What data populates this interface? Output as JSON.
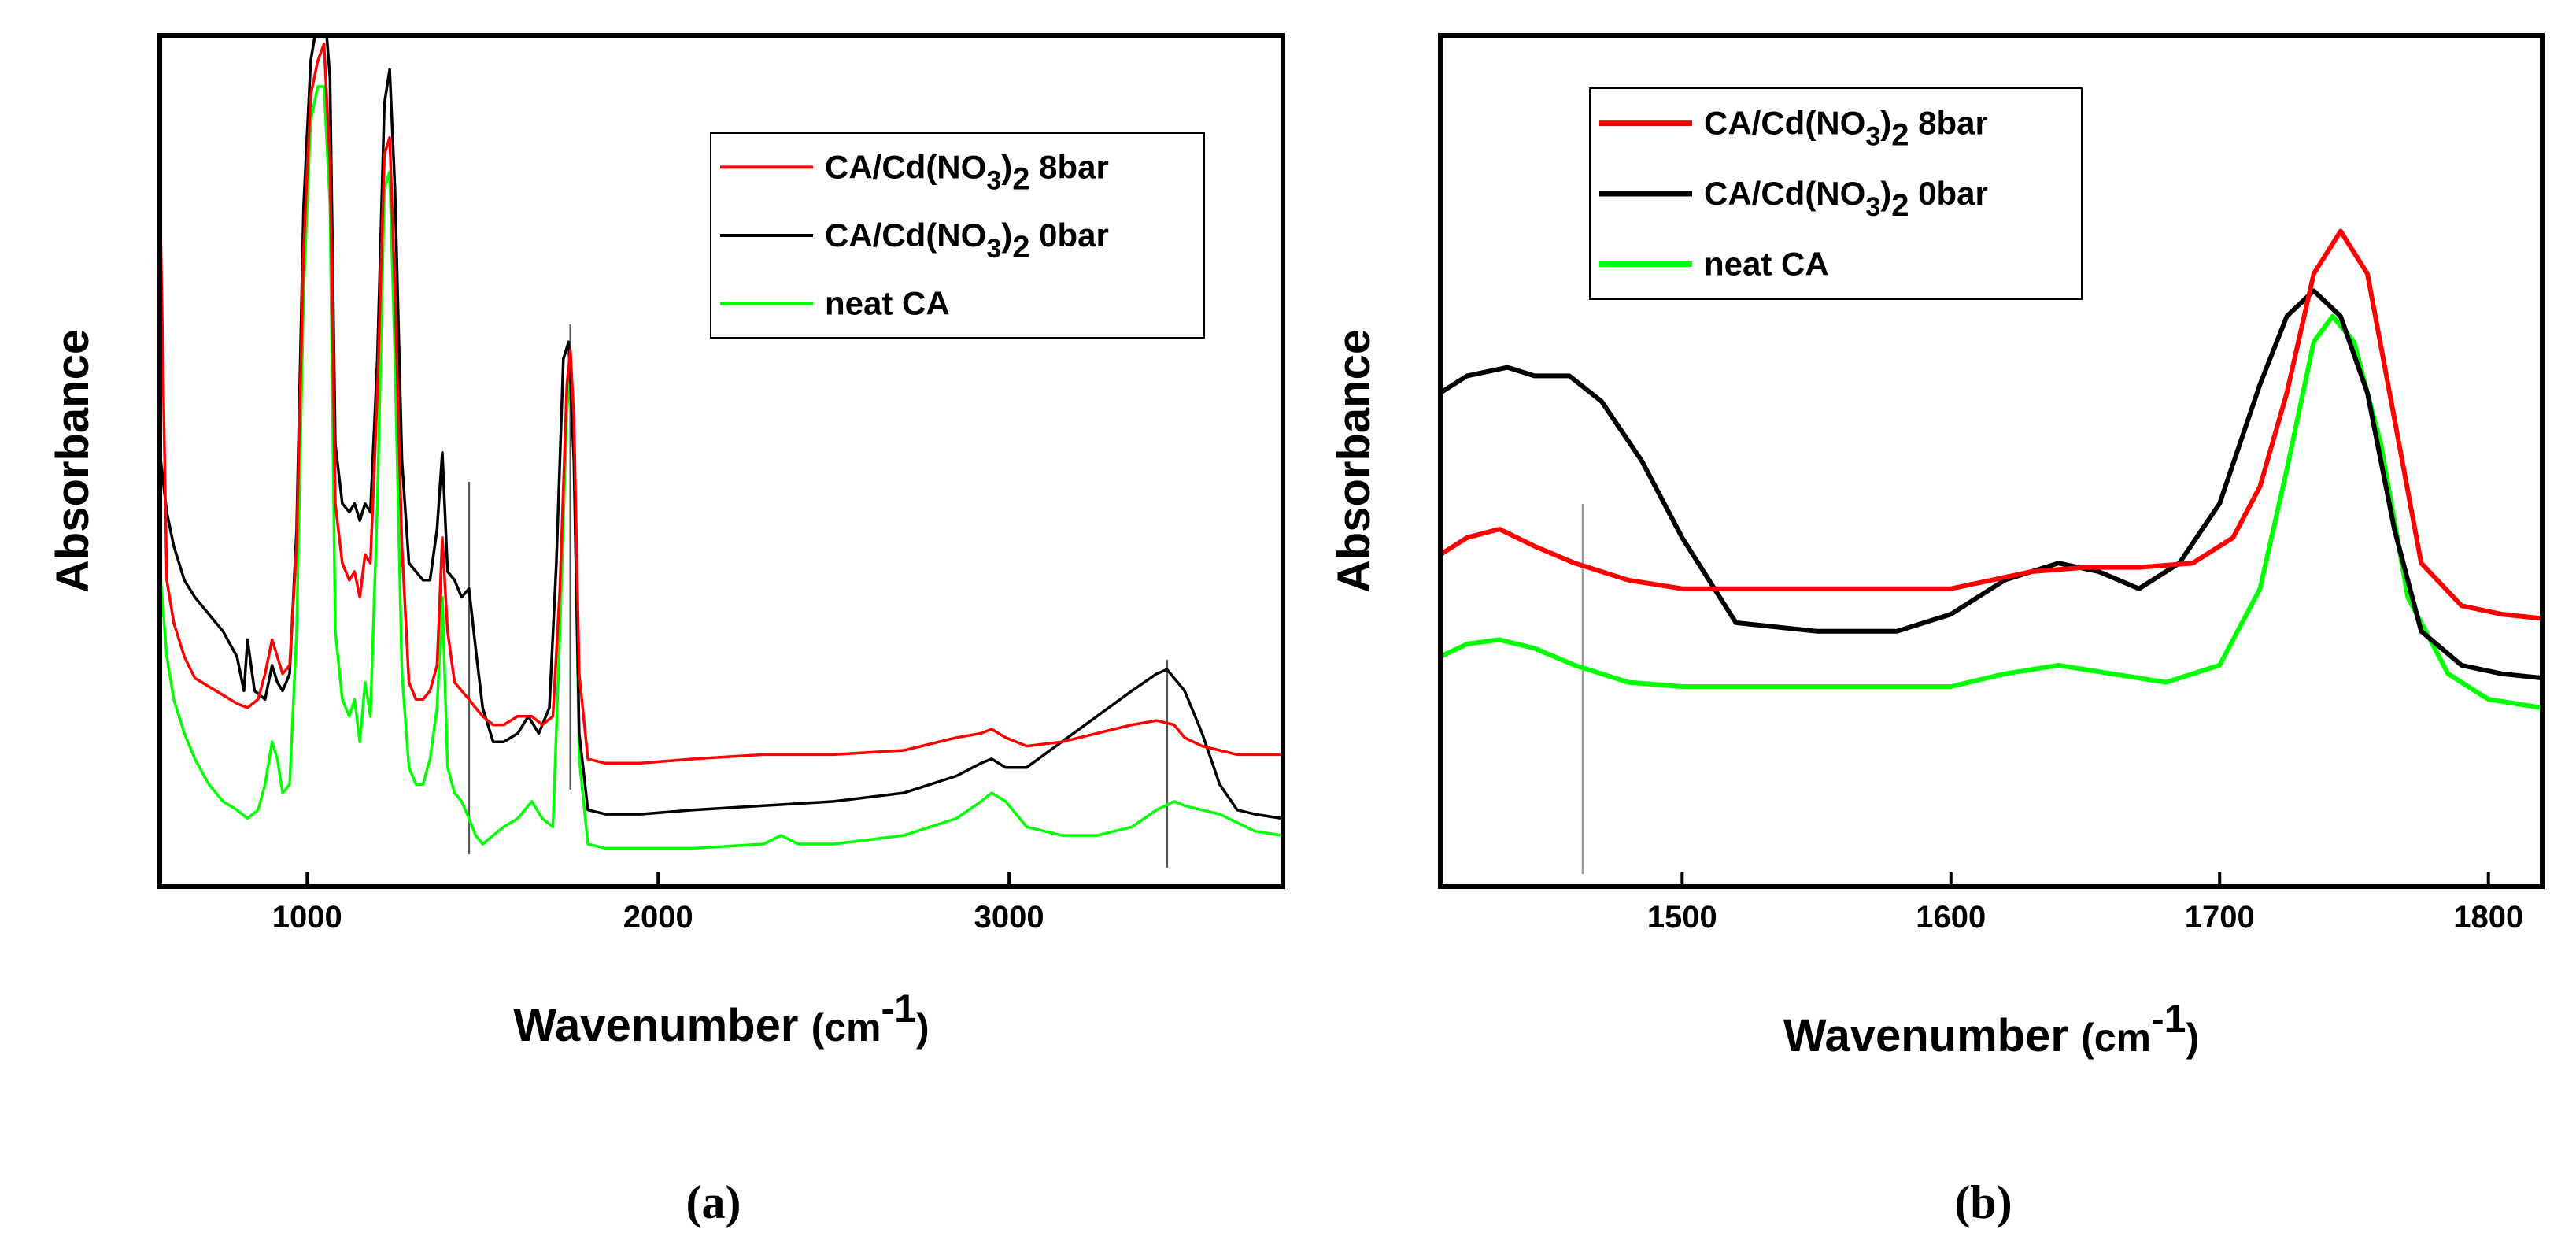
{
  "chart_data": [
    {
      "type": "line",
      "panel_label": "(a)",
      "xlabel": "Wavenumber",
      "xlabel_unit": "(cm",
      "xlabel_unit_sup": "-1",
      "xlabel_unit_close": ")",
      "ylabel": "Absorbance",
      "xlim": [
        580,
        3780
      ],
      "ylim": [
        0,
        1.0
      ],
      "xticks": [
        1000,
        2000,
        3000
      ],
      "xtick_labels": [
        "1000",
        "2000",
        "3000"
      ],
      "y_ticks_shown": false,
      "legend_position": "top-right",
      "reference_lines_x": [
        1461,
        1750,
        3450
      ],
      "series": [
        {
          "name": "CA/Cd(NO3)2 8bar",
          "legend_main": "CA/Cd(NO",
          "legend_sub1": "3",
          "legend_mid": ")",
          "legend_sub2": "2",
          "legend_tail": " 8bar",
          "color": "#ff0000",
          "x": [
            583,
            600,
            620,
            650,
            680,
            720,
            760,
            800,
            830,
            860,
            880,
            900,
            915,
            930,
            950,
            970,
            990,
            1010,
            1030,
            1048,
            1065,
            1080,
            1100,
            1120,
            1135,
            1150,
            1165,
            1180,
            1200,
            1220,
            1235,
            1250,
            1270,
            1290,
            1310,
            1330,
            1350,
            1370,
            1385,
            1400,
            1420,
            1440,
            1461,
            1480,
            1500,
            1530,
            1560,
            1600,
            1640,
            1670,
            1700,
            1720,
            1740,
            1750,
            1760,
            1775,
            1800,
            1850,
            1950,
            2100,
            2300,
            2500,
            2700,
            2850,
            2920,
            2950,
            2990,
            3050,
            3150,
            3250,
            3350,
            3420,
            3470,
            3500,
            3550,
            3600,
            3650,
            3700,
            3778
          ],
          "y": [
            0.76,
            0.36,
            0.31,
            0.27,
            0.245,
            0.235,
            0.225,
            0.215,
            0.21,
            0.22,
            0.25,
            0.29,
            0.27,
            0.25,
            0.26,
            0.4,
            0.75,
            0.93,
            0.97,
            0.99,
            0.85,
            0.45,
            0.38,
            0.36,
            0.37,
            0.34,
            0.39,
            0.38,
            0.58,
            0.86,
            0.88,
            0.7,
            0.4,
            0.24,
            0.22,
            0.22,
            0.23,
            0.26,
            0.41,
            0.3,
            0.24,
            0.23,
            0.22,
            0.21,
            0.2,
            0.19,
            0.19,
            0.2,
            0.2,
            0.19,
            0.2,
            0.35,
            0.59,
            0.63,
            0.55,
            0.25,
            0.15,
            0.145,
            0.145,
            0.15,
            0.155,
            0.155,
            0.16,
            0.175,
            0.18,
            0.185,
            0.175,
            0.165,
            0.17,
            0.18,
            0.19,
            0.195,
            0.19,
            0.175,
            0.165,
            0.16,
            0.155,
            0.155,
            0.155
          ]
        },
        {
          "name": "CA/Cd(NO3)2 0bar",
          "legend_main": "CA/Cd(NO",
          "legend_sub1": "3",
          "legend_mid": ")",
          "legend_sub2": "2",
          "legend_tail": " 0bar",
          "color": "#000000",
          "x": [
            583,
            600,
            620,
            650,
            680,
            720,
            760,
            800,
            820,
            830,
            850,
            880,
            900,
            915,
            930,
            950,
            970,
            990,
            1010,
            1030,
            1048,
            1065,
            1080,
            1100,
            1120,
            1135,
            1150,
            1165,
            1180,
            1200,
            1220,
            1235,
            1250,
            1270,
            1290,
            1310,
            1330,
            1350,
            1370,
            1385,
            1400,
            1420,
            1440,
            1461,
            1480,
            1500,
            1530,
            1560,
            1600,
            1630,
            1660,
            1690,
            1710,
            1730,
            1745,
            1760,
            1775,
            1800,
            1850,
            1950,
            2100,
            2300,
            2500,
            2700,
            2850,
            2920,
            2950,
            2990,
            3050,
            3150,
            3250,
            3350,
            3420,
            3450,
            3500,
            3550,
            3600,
            3650,
            3700,
            3778
          ],
          "y": [
            0.5,
            0.44,
            0.4,
            0.36,
            0.34,
            0.32,
            0.3,
            0.27,
            0.23,
            0.29,
            0.23,
            0.22,
            0.26,
            0.24,
            0.23,
            0.25,
            0.42,
            0.8,
            0.97,
            1.02,
            1.04,
            0.95,
            0.52,
            0.45,
            0.44,
            0.45,
            0.43,
            0.45,
            0.44,
            0.62,
            0.92,
            0.96,
            0.82,
            0.5,
            0.38,
            0.37,
            0.36,
            0.36,
            0.42,
            0.51,
            0.37,
            0.36,
            0.34,
            0.35,
            0.28,
            0.21,
            0.17,
            0.17,
            0.18,
            0.2,
            0.18,
            0.21,
            0.38,
            0.62,
            0.64,
            0.5,
            0.18,
            0.09,
            0.085,
            0.085,
            0.09,
            0.095,
            0.1,
            0.11,
            0.13,
            0.145,
            0.15,
            0.14,
            0.14,
            0.17,
            0.2,
            0.23,
            0.25,
            0.255,
            0.23,
            0.18,
            0.12,
            0.09,
            0.085,
            0.08
          ]
        },
        {
          "name": "neat CA",
          "legend_main": "neat CA",
          "legend_sub1": "",
          "legend_mid": "",
          "legend_sub2": "",
          "legend_tail": "",
          "color": "#00ff00",
          "x": [
            583,
            600,
            620,
            650,
            680,
            720,
            760,
            800,
            830,
            860,
            880,
            900,
            915,
            930,
            950,
            970,
            990,
            1010,
            1030,
            1048,
            1065,
            1080,
            1100,
            1120,
            1135,
            1150,
            1165,
            1180,
            1200,
            1220,
            1235,
            1250,
            1270,
            1290,
            1310,
            1330,
            1350,
            1370,
            1385,
            1400,
            1420,
            1440,
            1461,
            1480,
            1500,
            1530,
            1560,
            1600,
            1640,
            1670,
            1700,
            1720,
            1740,
            1750,
            1760,
            1775,
            1800,
            1850,
            1950,
            2100,
            2300,
            2350,
            2400,
            2500,
            2700,
            2850,
            2920,
            2950,
            2990,
            3050,
            3150,
            3250,
            3350,
            3420,
            3470,
            3500,
            3550,
            3600,
            3650,
            3700,
            3778
          ],
          "y": [
            0.36,
            0.27,
            0.22,
            0.18,
            0.15,
            0.12,
            0.1,
            0.09,
            0.08,
            0.09,
            0.12,
            0.17,
            0.15,
            0.11,
            0.12,
            0.3,
            0.7,
            0.9,
            0.94,
            0.94,
            0.8,
            0.3,
            0.22,
            0.2,
            0.22,
            0.17,
            0.24,
            0.2,
            0.45,
            0.82,
            0.84,
            0.62,
            0.25,
            0.14,
            0.12,
            0.12,
            0.15,
            0.21,
            0.34,
            0.14,
            0.11,
            0.1,
            0.08,
            0.06,
            0.05,
            0.06,
            0.07,
            0.08,
            0.1,
            0.08,
            0.07,
            0.3,
            0.56,
            0.6,
            0.52,
            0.15,
            0.05,
            0.045,
            0.045,
            0.045,
            0.05,
            0.06,
            0.05,
            0.05,
            0.06,
            0.08,
            0.1,
            0.11,
            0.1,
            0.07,
            0.06,
            0.06,
            0.07,
            0.09,
            0.1,
            0.095,
            0.09,
            0.085,
            0.075,
            0.065,
            0.06
          ]
        }
      ]
    },
    {
      "type": "line",
      "panel_label": "(b)",
      "xlabel": "Wavenumber",
      "xlabel_unit": "(cm",
      "xlabel_unit_sup": "-1",
      "xlabel_unit_close": ")",
      "ylabel": "Absorbance",
      "xlim": [
        1410,
        1820
      ],
      "ylim": [
        0,
        1.0
      ],
      "xticks": [
        1500,
        1600,
        1700,
        1800
      ],
      "xtick_labels": [
        "1500",
        "1600",
        "1700",
        "1800"
      ],
      "y_ticks_shown": false,
      "legend_position": "top-left",
      "reference_lines_x": [
        1463
      ],
      "series": [
        {
          "name": "CA/Cd(NO3)2 8bar",
          "legend_main": "CA/Cd(NO",
          "legend_sub1": "3",
          "legend_mid": ")",
          "legend_sub2": "2",
          "legend_tail": " 8bar",
          "color": "#ff0000",
          "x": [
            1410,
            1420,
            1432,
            1445,
            1460,
            1480,
            1500,
            1530,
            1560,
            1600,
            1630,
            1650,
            1670,
            1690,
            1705,
            1715,
            1725,
            1735,
            1745,
            1755,
            1765,
            1775,
            1790,
            1805,
            1820
          ],
          "y": [
            0.39,
            0.41,
            0.42,
            0.4,
            0.38,
            0.36,
            0.35,
            0.35,
            0.35,
            0.35,
            0.37,
            0.375,
            0.375,
            0.38,
            0.41,
            0.47,
            0.58,
            0.72,
            0.77,
            0.72,
            0.55,
            0.38,
            0.33,
            0.32,
            0.315
          ]
        },
        {
          "name": "CA/Cd(NO3)2 0bar",
          "legend_main": "CA/Cd(NO",
          "legend_sub1": "3",
          "legend_mid": ")",
          "legend_sub2": "2",
          "legend_tail": " 0bar",
          "color": "#000000",
          "x": [
            1410,
            1420,
            1435,
            1445,
            1458,
            1470,
            1485,
            1500,
            1520,
            1550,
            1580,
            1600,
            1620,
            1640,
            1655,
            1670,
            1685,
            1700,
            1715,
            1725,
            1735,
            1745,
            1755,
            1765,
            1775,
            1790,
            1805,
            1820
          ],
          "y": [
            0.58,
            0.6,
            0.61,
            0.6,
            0.6,
            0.57,
            0.5,
            0.41,
            0.31,
            0.3,
            0.3,
            0.32,
            0.36,
            0.38,
            0.37,
            0.35,
            0.38,
            0.45,
            0.59,
            0.67,
            0.7,
            0.67,
            0.58,
            0.42,
            0.3,
            0.26,
            0.25,
            0.245
          ]
        },
        {
          "name": "neat CA",
          "legend_main": "neat CA",
          "legend_sub1": "",
          "legend_mid": "",
          "legend_sub2": "",
          "legend_tail": "",
          "color": "#00ff00",
          "x": [
            1410,
            1420,
            1432,
            1445,
            1460,
            1480,
            1500,
            1530,
            1560,
            1600,
            1620,
            1640,
            1660,
            1680,
            1700,
            1715,
            1725,
            1735,
            1742,
            1750,
            1760,
            1770,
            1785,
            1800,
            1820
          ],
          "y": [
            0.27,
            0.285,
            0.29,
            0.28,
            0.26,
            0.24,
            0.235,
            0.235,
            0.235,
            0.235,
            0.25,
            0.26,
            0.25,
            0.24,
            0.26,
            0.35,
            0.49,
            0.64,
            0.67,
            0.64,
            0.52,
            0.34,
            0.25,
            0.22,
            0.21
          ]
        }
      ]
    }
  ]
}
